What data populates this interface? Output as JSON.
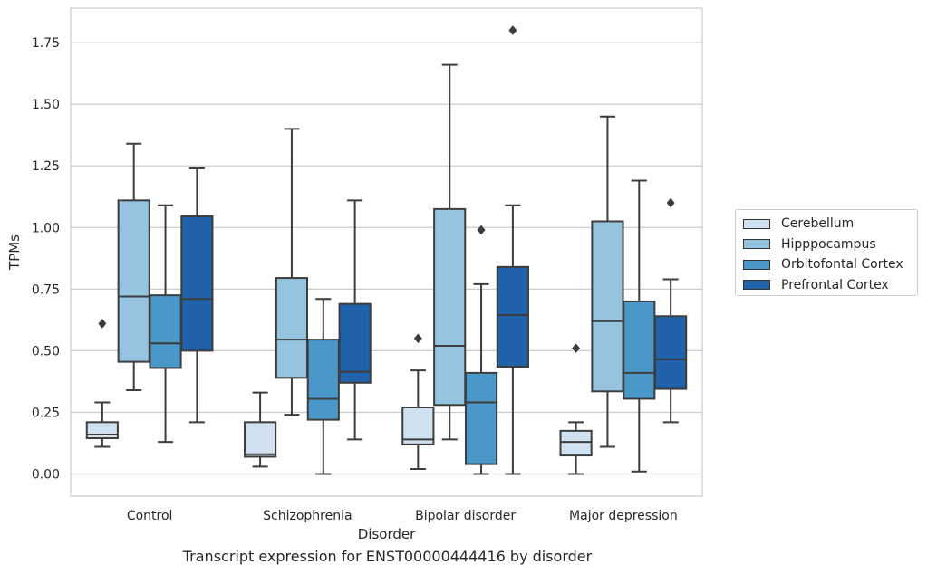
{
  "chart_data": {
    "type": "box",
    "xlabel": "Disorder",
    "ylabel": "TPMs",
    "caption": "Transcript expression for ENST00000444416 by disorder",
    "ylim": [
      -0.09,
      1.89
    ],
    "yticks": [
      0.0,
      0.25,
      0.5,
      0.75,
      1.0,
      1.25,
      1.5,
      1.75
    ],
    "ytick_labels": [
      "0.00",
      "0.25",
      "0.50",
      "0.75",
      "1.00",
      "1.25",
      "1.50",
      "1.75"
    ],
    "grid": "horizontal",
    "legend_placement": "right",
    "categories": [
      "Control",
      "Schizophrenia",
      "Bipolar disorder",
      "Major depression"
    ],
    "series": [
      {
        "name": "Cerebellum",
        "color": "#d0e1f2",
        "boxes": [
          {
            "whislo": 0.11,
            "q1": 0.145,
            "med": 0.16,
            "q3": 0.21,
            "whishi": 0.29,
            "fliers": [
              0.61
            ]
          },
          {
            "whislo": 0.03,
            "q1": 0.07,
            "med": 0.08,
            "q3": 0.21,
            "whishi": 0.33,
            "fliers": []
          },
          {
            "whislo": 0.02,
            "q1": 0.12,
            "med": 0.14,
            "q3": 0.27,
            "whishi": 0.42,
            "fliers": [
              0.55
            ]
          },
          {
            "whislo": 0.0,
            "q1": 0.075,
            "med": 0.13,
            "q3": 0.175,
            "whishi": 0.21,
            "fliers": [
              0.51
            ]
          }
        ]
      },
      {
        "name": "Hipppocampus",
        "color": "#94c4df",
        "boxes": [
          {
            "whislo": 0.34,
            "q1": 0.455,
            "med": 0.72,
            "q3": 1.11,
            "whishi": 1.34,
            "fliers": []
          },
          {
            "whislo": 0.24,
            "q1": 0.39,
            "med": 0.545,
            "q3": 0.795,
            "whishi": 1.4,
            "fliers": []
          },
          {
            "whislo": 0.14,
            "q1": 0.28,
            "med": 0.52,
            "q3": 1.075,
            "whishi": 1.66,
            "fliers": []
          },
          {
            "whislo": 0.11,
            "q1": 0.335,
            "med": 0.62,
            "q3": 1.025,
            "whishi": 1.45,
            "fliers": []
          }
        ]
      },
      {
        "name": "Orbitofontal Cortex",
        "color": "#4a98c9",
        "boxes": [
          {
            "whislo": 0.13,
            "q1": 0.43,
            "med": 0.53,
            "q3": 0.725,
            "whishi": 1.09,
            "fliers": []
          },
          {
            "whislo": 0.0,
            "q1": 0.22,
            "med": 0.305,
            "q3": 0.545,
            "whishi": 0.71,
            "fliers": []
          },
          {
            "whislo": 0.0,
            "q1": 0.04,
            "med": 0.29,
            "q3": 0.41,
            "whishi": 0.77,
            "fliers": [
              0.99
            ]
          },
          {
            "whislo": 0.01,
            "q1": 0.305,
            "med": 0.41,
            "q3": 0.7,
            "whishi": 1.19,
            "fliers": []
          }
        ]
      },
      {
        "name": "Prefrontal Cortex",
        "color": "#2163aa",
        "boxes": [
          {
            "whislo": 0.21,
            "q1": 0.5,
            "med": 0.71,
            "q3": 1.045,
            "whishi": 1.24,
            "fliers": []
          },
          {
            "whislo": 0.14,
            "q1": 0.37,
            "med": 0.415,
            "q3": 0.69,
            "whishi": 1.11,
            "fliers": []
          },
          {
            "whislo": 0.0,
            "q1": 0.435,
            "med": 0.645,
            "q3": 0.84,
            "whishi": 1.09,
            "fliers": [
              1.8
            ]
          },
          {
            "whislo": 0.21,
            "q1": 0.345,
            "med": 0.465,
            "q3": 0.64,
            "whishi": 0.79,
            "fliers": [
              1.1
            ]
          }
        ]
      }
    ]
  }
}
